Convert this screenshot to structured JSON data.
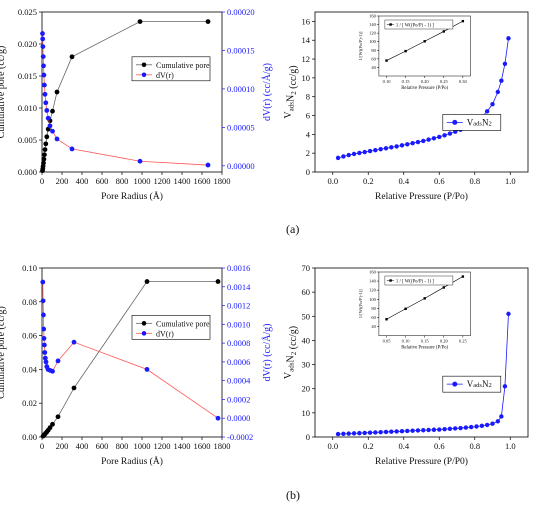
{
  "panels": [
    {
      "label": "(a)",
      "charts": [
        {
          "id": "a-left",
          "type": "line",
          "xlabel": "Pore Radius (Å)",
          "ylabel": "Cumulative pore (cc/g)",
          "y2label": "dV(r) (cc/Å/g)",
          "xlim": [
            0,
            1800
          ],
          "xticks": [
            "0",
            "200",
            "400",
            "600",
            "800",
            "1000",
            "1200",
            "1400",
            "1600",
            "1800"
          ],
          "ylim": [
            0,
            0.025
          ],
          "yticks": [
            "0.000",
            "0.005",
            "0.010",
            "0.015",
            "0.020",
            "0.025"
          ],
          "y2lim": [
            -8e-06,
            0.0002
          ],
          "y2ticks": [
            "0.00000",
            "0.00005",
            "0.00010",
            "0.00015",
            "0.00020"
          ],
          "legend": [
            "Cumulative pore",
            "dV(r)"
          ],
          "series": [
            {
              "name": "Cumulative pore",
              "axis": "left",
              "color": "#000000",
              "line": "#666666",
              "x": [
                5,
                8,
                11,
                15,
                19,
                24,
                30,
                38,
                48,
                62,
                80,
                105,
                150,
                300,
                980,
                1660
              ],
              "y": [
                0.0002,
                0.0005,
                0.0009,
                0.0014,
                0.002,
                0.0027,
                0.0035,
                0.0044,
                0.0055,
                0.0067,
                0.008,
                0.0095,
                0.0125,
                0.018,
                0.0235,
                0.0235
              ]
            },
            {
              "name": "dV(r)",
              "axis": "right",
              "color": "#1a1aff",
              "line": "#ff5555",
              "x": [
                5,
                7,
                9,
                12,
                15,
                19,
                24,
                30,
                38,
                48,
                62,
                80,
                105,
                150,
                300,
                980,
                1660
              ],
              "y": [
                0.000172,
                0.000165,
                0.000155,
                0.000142,
                0.00013,
                0.000118,
                0.000105,
                9.3e-05,
                8.2e-05,
                7.2e-05,
                6.2e-05,
                5.2e-05,
                4.5e-05,
                3.5e-05,
                2.2e-05,
                6e-06,
                1e-06
              ]
            }
          ]
        },
        {
          "id": "a-right",
          "type": "line",
          "xlabel": "Relative Pressure (P/Po)",
          "ylabel": "VadsN2 (cc/g)",
          "xlim": [
            -0.1,
            1.1
          ],
          "xticks": [
            "0.0",
            "0.2",
            "0.4",
            "0.6",
            "0.8",
            "1.0"
          ],
          "ylim": [
            0,
            17
          ],
          "yticks": [
            "0",
            "2",
            "4",
            "6",
            "8",
            "10",
            "12",
            "14",
            "16"
          ],
          "legend": [
            "VadsN2"
          ],
          "series": [
            {
              "name": "VadsN2",
              "color": "#1a1aff",
              "line": "#1a1aff",
              "x": [
                0.03,
                0.06,
                0.09,
                0.12,
                0.15,
                0.18,
                0.21,
                0.24,
                0.27,
                0.3,
                0.33,
                0.36,
                0.39,
                0.42,
                0.45,
                0.48,
                0.51,
                0.54,
                0.57,
                0.6,
                0.63,
                0.66,
                0.69,
                0.72,
                0.75,
                0.78,
                0.81,
                0.84,
                0.87,
                0.9,
                0.93,
                0.95,
                0.97,
                0.99
              ],
              "y": [
                1.5,
                1.65,
                1.8,
                1.92,
                2.02,
                2.12,
                2.22,
                2.32,
                2.42,
                2.52,
                2.62,
                2.72,
                2.83,
                2.94,
                3.06,
                3.18,
                3.3,
                3.44,
                3.58,
                3.73,
                3.9,
                4.08,
                4.28,
                4.5,
                4.76,
                5.05,
                5.4,
                5.85,
                6.45,
                7.2,
                8.5,
                9.7,
                11.5,
                14.2
              ]
            }
          ],
          "inset": {
            "xlabel": "Relative Pressure (P/Po)",
            "ylabel": "1/[W((Po/P)-1)]",
            "legend": [
              "1 / [ W((Po/P) - 1) ]"
            ],
            "xlim": [
              0.08,
              0.32
            ],
            "xticks": [
              "0.10",
              "0.15",
              "0.20",
              "0.25",
              "0.30"
            ],
            "ylim": [
              20,
              160
            ],
            "yticks": [
              "40",
              "60",
              "80",
              "100",
              "120",
              "140",
              "160"
            ],
            "series": [
              {
                "x": [
                  0.1,
                  0.15,
                  0.2,
                  0.25,
                  0.3
                ],
                "y": [
                  56,
                  78,
                  101,
                  124,
                  148
                ]
              }
            ]
          }
        }
      ]
    },
    {
      "label": "(b)",
      "charts": [
        {
          "id": "b-left",
          "type": "line",
          "xlabel": "Pore Radius (Å)",
          "ylabel": "Cumulative pore (cc/g)",
          "y2label": "dV(r) (cc/Å/g)",
          "xlim": [
            0,
            1800
          ],
          "xticks": [
            "0",
            "200",
            "400",
            "600",
            "800",
            "1000",
            "1200",
            "1400",
            "1600",
            "1800"
          ],
          "ylim": [
            0,
            0.1
          ],
          "yticks": [
            "0.00",
            "0.02",
            "0.04",
            "0.06",
            "0.08",
            "0.10"
          ],
          "y2lim": [
            -0.0002,
            0.0016
          ],
          "y2ticks": [
            "-0.0002",
            "0.0000",
            "0.0002",
            "0.0004",
            "0.0006",
            "0.0008",
            "0.0010",
            "0.0012",
            "0.0014",
            "0.0016"
          ],
          "legend": [
            "Cumulative pore",
            "dV(r)"
          ],
          "series": [
            {
              "name": "Cumulative pore",
              "axis": "left",
              "color": "#000000",
              "line": "#666666",
              "x": [
                10,
                18,
                26,
                36,
                48,
                62,
                80,
                105,
                160,
                320,
                1050,
                1760
              ],
              "y": [
                0.0005,
                0.001,
                0.0015,
                0.0022,
                0.003,
                0.004,
                0.0055,
                0.0075,
                0.012,
                0.029,
                0.092,
                0.092
              ]
            },
            {
              "name": "dV(r)",
              "axis": "right",
              "color": "#1a1aff",
              "line": "#ff5555",
              "x": [
                8,
                11,
                14,
                17,
                20,
                24,
                28,
                33,
                40,
                48,
                60,
                80,
                105,
                160,
                320,
                1050,
                1760
              ],
              "y": [
                0.00145,
                0.00125,
                0.0011,
                0.00095,
                0.00085,
                0.00078,
                0.0007,
                0.00064,
                0.0006,
                0.00055,
                0.00052,
                0.00051,
                0.0005,
                0.00061,
                0.00081,
                0.00052,
                0.0
              ]
            }
          ]
        },
        {
          "id": "b-right",
          "type": "line",
          "xlabel": "Relative Pressure (P/P0)",
          "ylabel": "VadsN2 (cc/g)",
          "xlim": [
            -0.1,
            1.1
          ],
          "xticks": [
            "0.0",
            "0.2",
            "0.4",
            "0.6",
            "0.8",
            "1.0"
          ],
          "ylim": [
            0,
            70
          ],
          "yticks": [
            "0",
            "10",
            "20",
            "30",
            "40",
            "50",
            "60",
            "70"
          ],
          "legend": [
            "VadsN2"
          ],
          "series": [
            {
              "name": "VadsN2",
              "color": "#1a1aff",
              "line": "#1a1aff",
              "x": [
                0.03,
                0.06,
                0.09,
                0.12,
                0.15,
                0.18,
                0.21,
                0.24,
                0.27,
                0.3,
                0.33,
                0.36,
                0.39,
                0.42,
                0.45,
                0.48,
                0.51,
                0.54,
                0.57,
                0.6,
                0.63,
                0.66,
                0.69,
                0.72,
                0.75,
                0.78,
                0.81,
                0.84,
                0.87,
                0.9,
                0.93,
                0.95,
                0.97,
                0.99
              ],
              "y": [
                1.2,
                1.3,
                1.4,
                1.5,
                1.6,
                1.7,
                1.8,
                1.9,
                2.0,
                2.1,
                2.2,
                2.3,
                2.4,
                2.5,
                2.6,
                2.7,
                2.8,
                2.9,
                3.0,
                3.1,
                3.25,
                3.4,
                3.55,
                3.7,
                3.9,
                4.1,
                4.35,
                4.65,
                5.0,
                5.5,
                6.5,
                8.5,
                21,
                51
              ]
            }
          ],
          "inset": {
            "xlabel": "Relative Pressure (P/Po)",
            "ylabel": "1/[W((Po/P)-1)]",
            "legend": [
              "1 / [ W((Po/P) - 1) ]"
            ],
            "xlim": [
              0.03,
              0.27
            ],
            "xticks": [
              "0.05",
              "0.10",
              "0.15",
              "0.20",
              "0.25"
            ],
            "ylim": [
              20,
              160
            ],
            "yticks": [
              "40",
              "60",
              "80",
              "100",
              "120",
              "140",
              "160"
            ],
            "series": [
              {
                "x": [
                  0.05,
                  0.1,
                  0.15,
                  0.2,
                  0.25
                ],
                "y": [
                  56,
                  79,
                  102,
                  126,
                  150
                ]
              }
            ]
          }
        }
      ]
    }
  ]
}
